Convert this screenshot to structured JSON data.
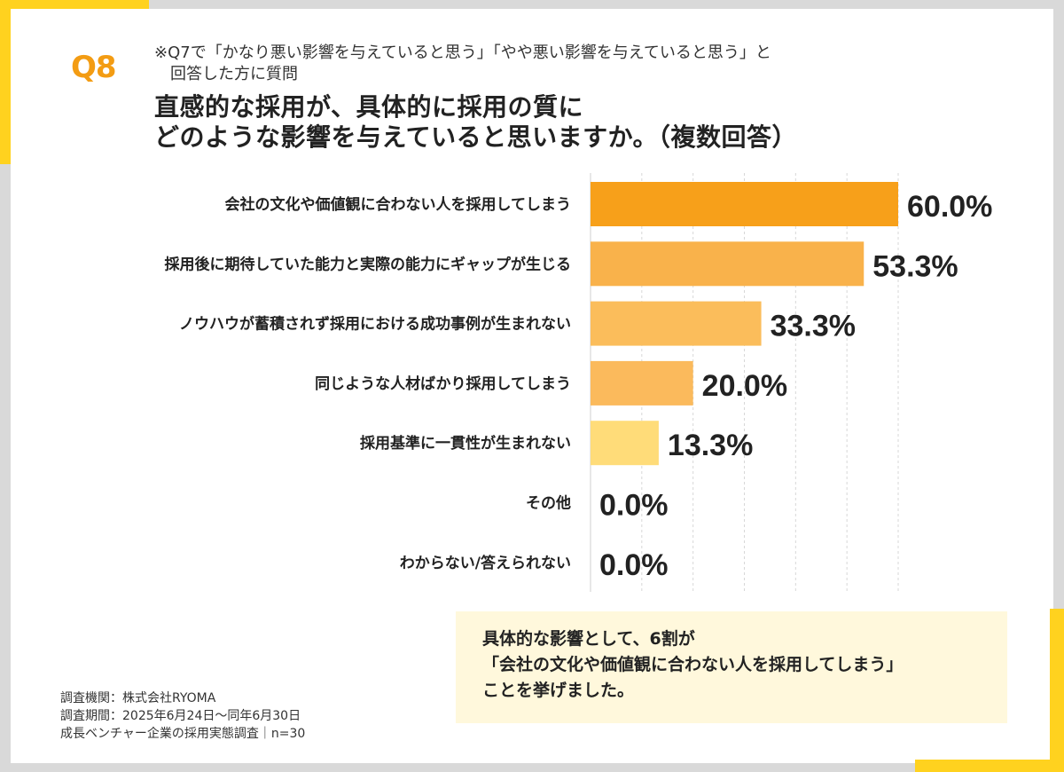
{
  "header": {
    "question_number": "Q8",
    "subnote_line1": "※Q7で「かなり悪い影響を与えていると思う」「やや悪い影響を与えていると思う」と",
    "subnote_line2": "回答した方に質問",
    "title_line1": "直感的な採用が、具体的に採用の質に",
    "title_line2": "どのような影響を与えていると思いますか。（複数回答）"
  },
  "chart_data": {
    "type": "bar",
    "orientation": "horizontal",
    "categories": [
      "会社の文化や価値観に合わない人を採用してしまう",
      "採用後に期待していた能力と実際の能力にギャップが生じる",
      "ノウハウが蓄積されず採用における成功事例が生まれない",
      "同じような人材ばかり採用してしまう",
      "採用基準に一貫性が生まれない",
      "その他",
      "わからない/答えられない"
    ],
    "values": [
      60.0,
      53.3,
      33.3,
      20.0,
      13.3,
      0.0,
      0.0
    ],
    "value_labels": [
      "60.0%",
      "53.3%",
      "33.3%",
      "20.0%",
      "13.3%",
      "0.0%",
      "0.0%"
    ],
    "title": "直感的な採用が、具体的に採用の質にどのような影響を与えていると思いますか。（複数回答）",
    "xlabel": "",
    "ylabel": "",
    "xlim": [
      0,
      60
    ],
    "grid": true,
    "legend": "none",
    "bar_colors": [
      "#f7a01a",
      "#f9b24b",
      "#fbbd5b",
      "#fbba5c",
      "#ffdc79",
      "#f9b24b",
      "#f9b24b"
    ]
  },
  "callout": {
    "line1": "具体的な影響として、6割が",
    "line2": "「会社の文化や価値観に合わない人を採用してしまう」",
    "line3": "ことを挙げました。"
  },
  "footer": {
    "line1": "調査機関：株式会社RYOMA",
    "line2": "調査期間：2025年6月24日～同年6月30日",
    "line3": "成長ベンチャー企業の採用実態調査｜n=30"
  },
  "colors": {
    "accent": "#ffd21f",
    "qnum": "#f39c13",
    "grid": "#d7d7d7",
    "callout_bg": "#fff8dc"
  }
}
